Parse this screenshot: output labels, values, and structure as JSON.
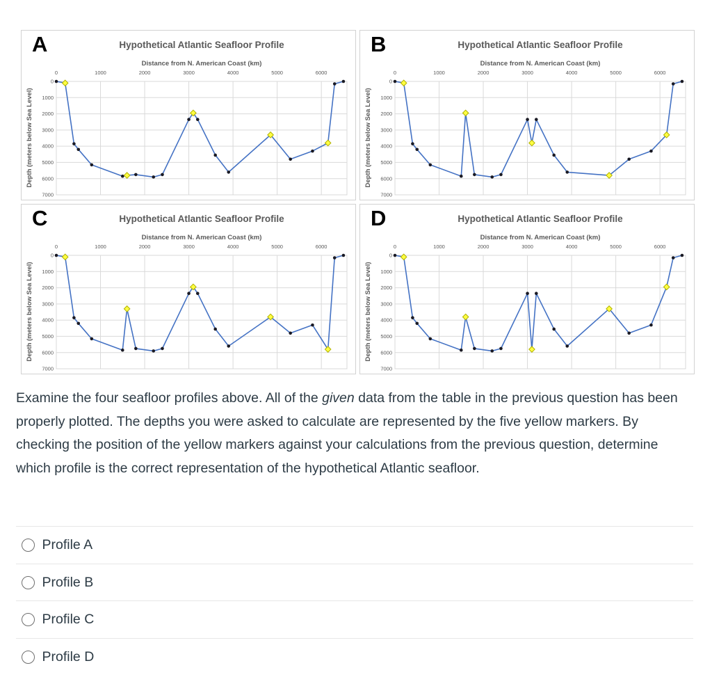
{
  "question": {
    "text_before_italic": "Examine the four seafloor profiles above. All of the ",
    "italic_word": "given",
    "text_after_italic": " data from the table in the previous question has been properly plotted. The depths you were asked to calculate are represented by the five yellow markers. By checking the position of the yellow markers against your calculations from the previous question, determine which profile is the correct representation of the hypothetical Atlantic seafloor."
  },
  "options": [
    {
      "label": "Profile A",
      "selected": false
    },
    {
      "label": "Profile B",
      "selected": false
    },
    {
      "label": "Profile C",
      "selected": false
    },
    {
      "label": "Profile D",
      "selected": false
    }
  ],
  "colors": {
    "line": "#4472C4",
    "given_marker": "#1a1a24",
    "calculated_marker_fill": "#ffff42",
    "calculated_marker_stroke": "#b0b000",
    "gridline": "#d9d9d9",
    "chart_text": "#595959",
    "panel_border": "#d2d2d2",
    "body_text": "#2d3b45",
    "divider": "#e7e7e7"
  },
  "chart_data": [
    {
      "type": "line",
      "panel_label": "A",
      "title": "Hypothetical Atlantic Seafloor Profile",
      "xlabel": "Distance from N. American Coast (km)",
      "ylabel": "Depth (meters below Sea Level)",
      "x_ticks": [
        0,
        1000,
        2000,
        3000,
        4000,
        5000,
        6000
      ],
      "y_ticks": [
        0,
        1000,
        2000,
        3000,
        4000,
        5000,
        6000,
        7000
      ],
      "xlim": [
        0,
        6580
      ],
      "ylim": [
        0,
        7000
      ],
      "y_axis_inverted_depth": true,
      "grid": true,
      "point_format": [
        "distance_km",
        "depth_m",
        "marker"
      ],
      "marker_legend": {
        "given": "black-circle",
        "calculated": "yellow-diamond"
      },
      "points": [
        [
          0,
          0,
          "given"
        ],
        [
          200,
          100,
          "calculated"
        ],
        [
          400,
          3850,
          "given"
        ],
        [
          500,
          4200,
          "given"
        ],
        [
          800,
          5150,
          "given"
        ],
        [
          1500,
          5850,
          "given"
        ],
        [
          1600,
          5800,
          "calculated"
        ],
        [
          1800,
          5750,
          "given"
        ],
        [
          2200,
          5900,
          "given"
        ],
        [
          2400,
          5750,
          "given"
        ],
        [
          3000,
          2350,
          "given"
        ],
        [
          3100,
          1950,
          "calculated"
        ],
        [
          3200,
          2350,
          "given"
        ],
        [
          3600,
          4550,
          "given"
        ],
        [
          3900,
          5600,
          "given"
        ],
        [
          4850,
          3300,
          "calculated"
        ],
        [
          5300,
          4800,
          "given"
        ],
        [
          5800,
          4300,
          "given"
        ],
        [
          6150,
          3800,
          "calculated"
        ],
        [
          6300,
          150,
          "given"
        ],
        [
          6500,
          0,
          "given"
        ]
      ]
    },
    {
      "type": "line",
      "panel_label": "B",
      "title": "Hypothetical Atlantic Seafloor Profile",
      "xlabel": "Distance from N. American Coast (km)",
      "ylabel": "Depth (meters below Sea Level)",
      "x_ticks": [
        0,
        1000,
        2000,
        3000,
        4000,
        5000,
        6000
      ],
      "y_ticks": [
        0,
        1000,
        2000,
        3000,
        4000,
        5000,
        6000,
        7000
      ],
      "xlim": [
        0,
        6580
      ],
      "ylim": [
        0,
        7000
      ],
      "y_axis_inverted_depth": true,
      "grid": true,
      "point_format": [
        "distance_km",
        "depth_m",
        "marker"
      ],
      "marker_legend": {
        "given": "black-circle",
        "calculated": "yellow-diamond"
      },
      "points": [
        [
          0,
          0,
          "given"
        ],
        [
          200,
          100,
          "calculated"
        ],
        [
          400,
          3850,
          "given"
        ],
        [
          500,
          4200,
          "given"
        ],
        [
          800,
          5150,
          "given"
        ],
        [
          1500,
          5850,
          "given"
        ],
        [
          1600,
          1950,
          "calculated"
        ],
        [
          1800,
          5750,
          "given"
        ],
        [
          2200,
          5900,
          "given"
        ],
        [
          2400,
          5750,
          "given"
        ],
        [
          3000,
          2350,
          "given"
        ],
        [
          3100,
          3800,
          "calculated"
        ],
        [
          3200,
          2350,
          "given"
        ],
        [
          3600,
          4550,
          "given"
        ],
        [
          3900,
          5600,
          "given"
        ],
        [
          4850,
          5800,
          "calculated"
        ],
        [
          5300,
          4800,
          "given"
        ],
        [
          5800,
          4300,
          "given"
        ],
        [
          6150,
          3300,
          "calculated"
        ],
        [
          6300,
          150,
          "given"
        ],
        [
          6500,
          0,
          "given"
        ]
      ]
    },
    {
      "type": "line",
      "panel_label": "C",
      "title": "Hypothetical Atlantic Seafloor Profile",
      "xlabel": "Distance from N. American Coast (km)",
      "ylabel": "Depth (meters below Sea Level)",
      "x_ticks": [
        0,
        1000,
        2000,
        3000,
        4000,
        5000,
        6000
      ],
      "y_ticks": [
        0,
        1000,
        2000,
        3000,
        4000,
        5000,
        6000,
        7000
      ],
      "xlim": [
        0,
        6580
      ],
      "ylim": [
        0,
        7000
      ],
      "y_axis_inverted_depth": true,
      "grid": true,
      "point_format": [
        "distance_km",
        "depth_m",
        "marker"
      ],
      "marker_legend": {
        "given": "black-circle",
        "calculated": "yellow-diamond"
      },
      "points": [
        [
          0,
          0,
          "given"
        ],
        [
          200,
          100,
          "calculated"
        ],
        [
          400,
          3850,
          "given"
        ],
        [
          500,
          4200,
          "given"
        ],
        [
          800,
          5150,
          "given"
        ],
        [
          1500,
          5850,
          "given"
        ],
        [
          1600,
          3300,
          "calculated"
        ],
        [
          1800,
          5750,
          "given"
        ],
        [
          2200,
          5900,
          "given"
        ],
        [
          2400,
          5750,
          "given"
        ],
        [
          3000,
          2350,
          "given"
        ],
        [
          3100,
          1950,
          "calculated"
        ],
        [
          3200,
          2350,
          "given"
        ],
        [
          3600,
          4550,
          "given"
        ],
        [
          3900,
          5600,
          "given"
        ],
        [
          4850,
          3800,
          "calculated"
        ],
        [
          5300,
          4800,
          "given"
        ],
        [
          5800,
          4300,
          "given"
        ],
        [
          6150,
          5800,
          "calculated"
        ],
        [
          6300,
          150,
          "given"
        ],
        [
          6500,
          0,
          "given"
        ]
      ]
    },
    {
      "type": "line",
      "panel_label": "D",
      "title": "Hypothetical Atlantic Seafloor Profile",
      "xlabel": "Distance from N. American Coast (km)",
      "ylabel": "Depth (meters below Sea Level)",
      "x_ticks": [
        0,
        1000,
        2000,
        3000,
        4000,
        5000,
        6000
      ],
      "y_ticks": [
        0,
        1000,
        2000,
        3000,
        4000,
        5000,
        6000,
        7000
      ],
      "xlim": [
        0,
        6580
      ],
      "ylim": [
        0,
        7000
      ],
      "y_axis_inverted_depth": true,
      "grid": true,
      "point_format": [
        "distance_km",
        "depth_m",
        "marker"
      ],
      "marker_legend": {
        "given": "black-circle",
        "calculated": "yellow-diamond"
      },
      "points": [
        [
          0,
          0,
          "given"
        ],
        [
          200,
          100,
          "calculated"
        ],
        [
          400,
          3850,
          "given"
        ],
        [
          500,
          4200,
          "given"
        ],
        [
          800,
          5150,
          "given"
        ],
        [
          1500,
          5850,
          "given"
        ],
        [
          1600,
          3800,
          "calculated"
        ],
        [
          1800,
          5750,
          "given"
        ],
        [
          2200,
          5900,
          "given"
        ],
        [
          2400,
          5750,
          "given"
        ],
        [
          3000,
          2350,
          "given"
        ],
        [
          3100,
          5800,
          "calculated"
        ],
        [
          3200,
          2350,
          "given"
        ],
        [
          3600,
          4550,
          "given"
        ],
        [
          3900,
          5600,
          "given"
        ],
        [
          4850,
          3300,
          "calculated"
        ],
        [
          5300,
          4800,
          "given"
        ],
        [
          5800,
          4300,
          "given"
        ],
        [
          6150,
          1950,
          "calculated"
        ],
        [
          6300,
          150,
          "given"
        ],
        [
          6500,
          0,
          "given"
        ]
      ]
    }
  ]
}
